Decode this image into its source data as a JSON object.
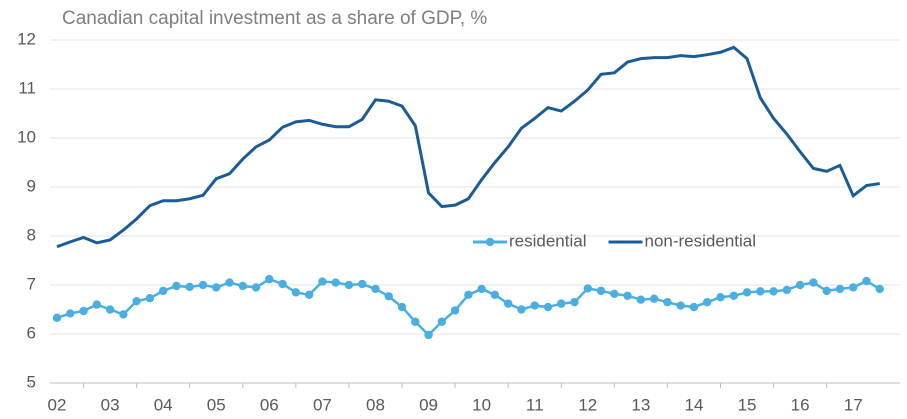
{
  "chart_data": {
    "type": "line",
    "title": "Canadian capital investment as a share of GDP, %",
    "categories": [
      "02",
      null,
      null,
      null,
      "03",
      null,
      null,
      null,
      "04",
      null,
      null,
      null,
      "05",
      null,
      null,
      null,
      "06",
      null,
      null,
      null,
      "07",
      null,
      null,
      null,
      "08",
      null,
      null,
      null,
      "09",
      null,
      null,
      null,
      "10",
      null,
      null,
      null,
      "11",
      null,
      null,
      null,
      "12",
      null,
      null,
      null,
      "13",
      null,
      null,
      null,
      "14",
      null,
      null,
      null,
      "15",
      null,
      null,
      null,
      "16",
      null,
      null,
      null,
      "17",
      null,
      null
    ],
    "series": [
      {
        "name": "residential",
        "color": "#4aafe0",
        "marker": true,
        "values": [
          6.33,
          6.42,
          6.47,
          6.6,
          6.5,
          6.4,
          6.67,
          6.73,
          6.88,
          6.98,
          6.96,
          7.0,
          6.95,
          7.05,
          6.98,
          6.95,
          7.12,
          7.02,
          6.85,
          6.8,
          7.07,
          7.05,
          7.0,
          7.02,
          6.92,
          6.77,
          6.55,
          6.25,
          5.98,
          6.25,
          6.48,
          6.8,
          6.92,
          6.8,
          6.62,
          6.5,
          6.58,
          6.55,
          6.62,
          6.65,
          6.93,
          6.88,
          6.82,
          6.78,
          6.7,
          6.72,
          6.65,
          6.58,
          6.55,
          6.65,
          6.75,
          6.78,
          6.85,
          6.87,
          6.87,
          6.9,
          7.0,
          7.05,
          6.88,
          6.92,
          6.95,
          7.08,
          6.92
        ]
      },
      {
        "name": "non-residential",
        "color": "#1b5c98",
        "marker": false,
        "values": [
          7.78,
          7.88,
          7.97,
          7.86,
          7.92,
          8.12,
          8.35,
          8.62,
          8.72,
          8.72,
          8.76,
          8.83,
          9.17,
          9.27,
          9.57,
          9.82,
          9.96,
          10.22,
          10.33,
          10.36,
          10.28,
          10.23,
          10.23,
          10.38,
          10.78,
          10.75,
          10.65,
          10.25,
          8.88,
          8.6,
          8.63,
          8.76,
          9.15,
          9.5,
          9.82,
          10.2,
          10.4,
          10.62,
          10.55,
          10.75,
          10.98,
          11.3,
          11.33,
          11.55,
          11.62,
          11.64,
          11.64,
          11.68,
          11.66,
          11.7,
          11.75,
          11.85,
          11.62,
          10.82,
          10.4,
          10.08,
          9.72,
          9.38,
          9.32,
          9.44,
          8.82,
          9.03,
          9.07
        ]
      }
    ],
    "ylim": [
      5,
      12
    ],
    "yticks": [
      5,
      6,
      7,
      8,
      9,
      10,
      11,
      12
    ],
    "grid": true,
    "legend": "center"
  }
}
